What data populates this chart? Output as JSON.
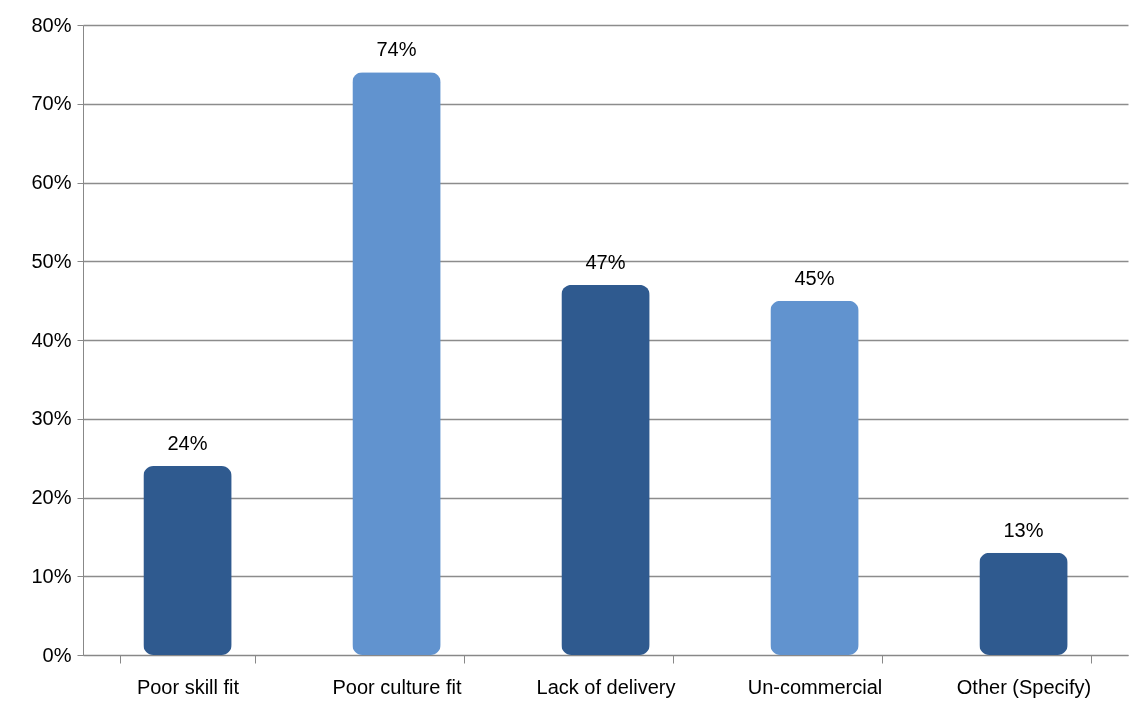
{
  "chart_data": {
    "type": "bar",
    "categories": [
      "Poor skill fit",
      "Poor culture fit",
      "Lack of delivery",
      "Un-commercial",
      "Other (Specify)"
    ],
    "values": [
      24,
      74,
      47,
      45,
      13
    ],
    "colors": [
      "#2f5a8f",
      "#6193cf",
      "#2f5a8f",
      "#6193cf",
      "#2f5a8f"
    ],
    "value_labels": [
      "24%",
      "74%",
      "47%",
      "45%",
      "13%"
    ],
    "ylim": [
      0,
      80
    ],
    "yticks": [
      {
        "value": 0,
        "label": "0%"
      },
      {
        "value": 10,
        "label": "10%"
      },
      {
        "value": 20,
        "label": "20%"
      },
      {
        "value": 30,
        "label": "30%"
      },
      {
        "value": 40,
        "label": "40%"
      },
      {
        "value": 50,
        "label": "50%"
      },
      {
        "value": 60,
        "label": "60%"
      },
      {
        "value": 70,
        "label": "70%"
      },
      {
        "value": 80,
        "label": "80%"
      }
    ],
    "grid": "y",
    "legend": false
  }
}
